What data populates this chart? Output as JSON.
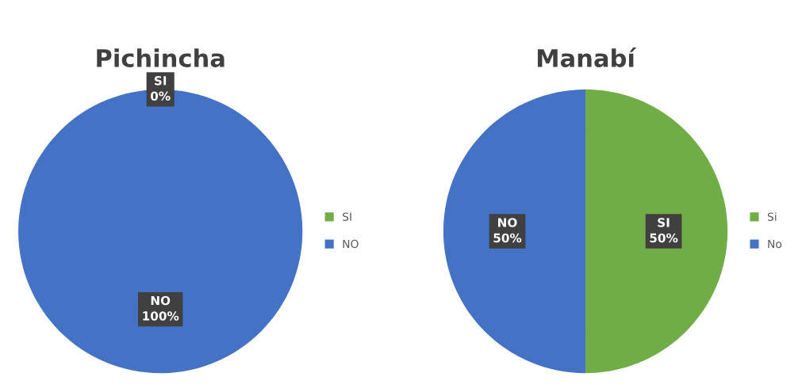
{
  "chart_data": [
    {
      "type": "pie",
      "title": "Pichincha",
      "categories": [
        "SI",
        "NO"
      ],
      "values": [
        0,
        100
      ],
      "colors": [
        "#70ad47",
        "#4472c4"
      ],
      "value_labels": [
        "SI\n0%",
        "NO\n100%"
      ],
      "legend": "right"
    },
    {
      "type": "pie",
      "title": "Manabí",
      "categories": [
        "Si",
        "No"
      ],
      "values": [
        50,
        50
      ],
      "colors": [
        "#70ad47",
        "#4472c4"
      ],
      "value_labels": [
        "SI\n50%",
        "NO\n50%"
      ],
      "legend": "right"
    }
  ]
}
